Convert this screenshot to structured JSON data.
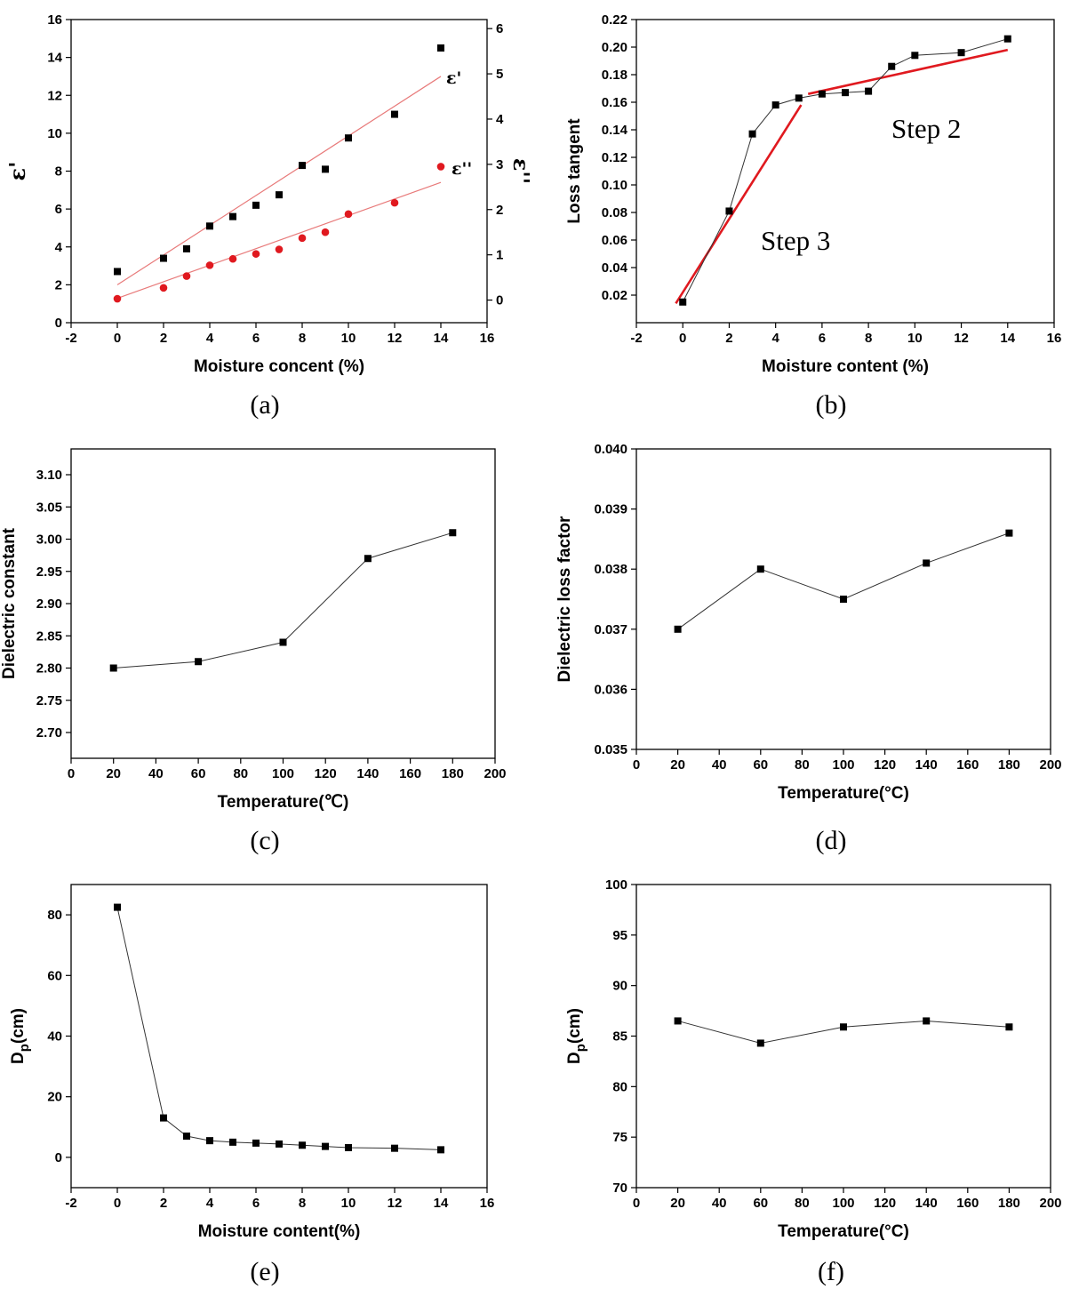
{
  "colors": {
    "black": "#000000",
    "red": "#e0191f",
    "fit_light": "#e87a7a",
    "fit_bold": "#e0191f"
  },
  "chart_data": [
    {
      "id": "a",
      "type": "scatter",
      "caption": "(a)",
      "xlabel": "Moisture concent (%)",
      "ylabel": "ε'",
      "ylabel_right": "ε''",
      "xlim": [
        -2,
        16
      ],
      "xticks": [
        "-2",
        "0",
        "2",
        "4",
        "6",
        "8",
        "10",
        "12",
        "14",
        "16"
      ],
      "ylim": [
        0,
        16
      ],
      "yticks": [
        "0",
        "2",
        "4",
        "6",
        "8",
        "10",
        "12",
        "14",
        "16"
      ],
      "y2lim": [
        -0.5,
        6.2
      ],
      "y2ticks": [
        "0",
        "1",
        "2",
        "3",
        "4",
        "5",
        "6"
      ],
      "series": [
        {
          "name": "ε'",
          "axis": "left",
          "marker": "square",
          "color": "black",
          "x": [
            0,
            2,
            3,
            4,
            5,
            6,
            7,
            8,
            9,
            10,
            12,
            14
          ],
          "y": [
            2.7,
            3.4,
            3.9,
            5.1,
            5.6,
            6.2,
            6.75,
            8.3,
            8.1,
            9.75,
            11.0,
            14.5
          ],
          "fit": [
            [
              0,
              2.0
            ],
            [
              14,
              13.0
            ]
          ]
        },
        {
          "name": "ε''",
          "axis": "right",
          "marker": "circle",
          "color": "red",
          "x": [
            0,
            2,
            3,
            4,
            5,
            6,
            7,
            8,
            9,
            10,
            12,
            14
          ],
          "y": [
            0.03,
            0.27,
            0.53,
            0.77,
            0.91,
            1.02,
            1.12,
            1.37,
            1.5,
            1.9,
            2.15,
            2.95
          ],
          "fit": [
            [
              0,
              0.04
            ],
            [
              14,
              2.6
            ]
          ]
        }
      ]
    },
    {
      "id": "b",
      "type": "line",
      "caption": "(b)",
      "xlabel": "Moisture content (%)",
      "ylabel": "Loss  tangent",
      "xlim": [
        -2,
        16
      ],
      "xticks": [
        "-2",
        "0",
        "2",
        "4",
        "6",
        "8",
        "10",
        "12",
        "14",
        "16"
      ],
      "ylim": [
        0.0,
        0.22
      ],
      "yticks": [
        "0.02",
        "0.04",
        "0.06",
        "0.08",
        "0.10",
        "0.12",
        "0.14",
        "0.16",
        "0.18",
        "0.20",
        "0.22"
      ],
      "annotations": [
        "Step 2",
        "Step 3"
      ],
      "series": [
        {
          "name": "loss tangent",
          "marker": "square",
          "color": "black",
          "x": [
            0,
            2,
            3,
            4,
            5,
            6,
            7,
            8,
            9,
            10,
            12,
            14
          ],
          "y": [
            0.015,
            0.081,
            0.137,
            0.158,
            0.163,
            0.166,
            0.167,
            0.168,
            0.186,
            0.194,
            0.196,
            0.206
          ]
        }
      ],
      "fits": [
        [
          [
            -0.3,
            0.014
          ],
          [
            5.1,
            0.158
          ]
        ],
        [
          [
            5.4,
            0.166
          ],
          [
            14,
            0.198
          ]
        ]
      ]
    },
    {
      "id": "c",
      "type": "line",
      "caption": "(c)",
      "xlabel": "Temperature(℃)",
      "ylabel": "Dielectric constant",
      "xlim": [
        0,
        200
      ],
      "xticks": [
        "0",
        "20",
        "40",
        "60",
        "80",
        "100",
        "120",
        "140",
        "160",
        "180",
        "200"
      ],
      "ylim": [
        2.66,
        3.14
      ],
      "yticks": [
        "2.70",
        "2.75",
        "2.80",
        "2.85",
        "2.90",
        "2.95",
        "3.00",
        "3.05",
        "3.10"
      ],
      "series": [
        {
          "name": "dielectric constant",
          "marker": "square",
          "color": "black",
          "x": [
            20,
            60,
            100,
            140,
            180
          ],
          "y": [
            2.8,
            2.81,
            2.84,
            2.97,
            3.01
          ]
        }
      ]
    },
    {
      "id": "d",
      "type": "line",
      "caption": "(d)",
      "xlabel": "Temperature(°C)",
      "ylabel": "Dielectric loss factor",
      "xlim": [
        0,
        200
      ],
      "xticks": [
        "0",
        "20",
        "40",
        "60",
        "80",
        "100",
        "120",
        "140",
        "160",
        "180",
        "200"
      ],
      "ylim": [
        0.035,
        0.04
      ],
      "yticks": [
        "0.035",
        "0.036",
        "0.037",
        "0.038",
        "0.039",
        "0.040"
      ],
      "series": [
        {
          "name": "dielectric loss factor",
          "marker": "square",
          "color": "black",
          "x": [
            20,
            60,
            100,
            140,
            180
          ],
          "y": [
            0.037,
            0.038,
            0.0375,
            0.0381,
            0.0386
          ]
        }
      ]
    },
    {
      "id": "e",
      "type": "line",
      "caption": "(e)",
      "xlabel": "Moisture content(%)",
      "ylabel": "Dp(cm)",
      "xlim": [
        -2,
        16
      ],
      "xticks": [
        "-2",
        "0",
        "2",
        "4",
        "6",
        "8",
        "10",
        "12",
        "14",
        "16"
      ],
      "ylim": [
        -10,
        90
      ],
      "yticks": [
        "0",
        "20",
        "40",
        "60",
        "80"
      ],
      "series": [
        {
          "name": "Dp",
          "marker": "square",
          "color": "black",
          "x": [
            0,
            2,
            3,
            4,
            5,
            6,
            7,
            8,
            9,
            10,
            12,
            14
          ],
          "y": [
            82.5,
            13.0,
            7.0,
            5.5,
            5.0,
            4.7,
            4.4,
            4.0,
            3.6,
            3.2,
            3.0,
            2.5
          ]
        }
      ]
    },
    {
      "id": "f",
      "type": "line",
      "caption": "(f)",
      "xlabel": "Temperature(°C)",
      "ylabel": "Dp(cm)",
      "xlim": [
        0,
        200
      ],
      "xticks": [
        "0",
        "20",
        "40",
        "60",
        "80",
        "100",
        "120",
        "140",
        "160",
        "180",
        "200"
      ],
      "ylim": [
        70,
        100
      ],
      "yticks": [
        "70",
        "75",
        "80",
        "85",
        "90",
        "95",
        "100"
      ],
      "series": [
        {
          "name": "Dp",
          "marker": "square",
          "color": "black",
          "x": [
            20,
            60,
            100,
            140,
            180
          ],
          "y": [
            86.5,
            84.3,
            85.9,
            86.5,
            85.9
          ]
        }
      ]
    }
  ]
}
